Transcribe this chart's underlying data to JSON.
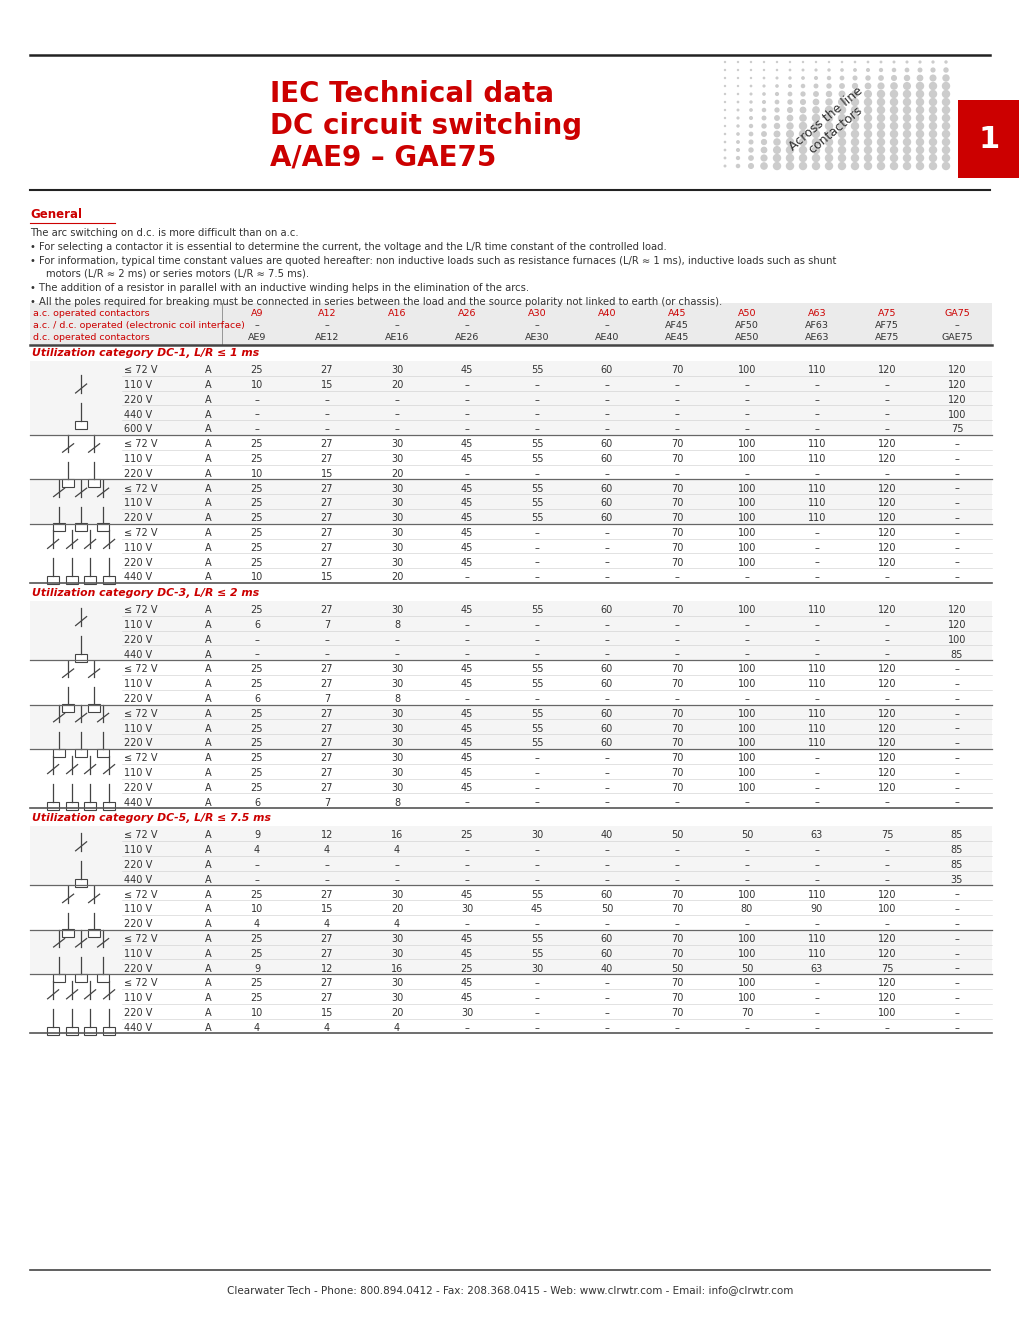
{
  "title_line1": "IEC Technical data",
  "title_line2": "DC circuit switching",
  "title_line3": "A/AE9 – GAE75",
  "title_color": "#cc0000",
  "page_number": "1",
  "general_heading": "General",
  "general_text_line1": "The arc switching on d.c. is more difficult than on a.c.",
  "general_text_bullets": [
    "For selecting a contactor it is essential to determine the current, the voltage and the L/R time constant of the controlled load.",
    "For information, typical time constant values are quoted hereafter: non inductive loads such as resistance furnaces (L/R ≈ 1 ms), inductive loads such as shunt\n  motors (L/R ≈ 2 ms) or series motors (L/R ≈ 7.5 ms).",
    "The addition of a resistor in parallel with an inductive winding helps in the elimination of the arcs.",
    "All the poles required for breaking must be connected in series between the load and the source polarity not linked to earth (or chassis)."
  ],
  "col_headers_row1": [
    "A9",
    "A12",
    "A16",
    "A26",
    "A30",
    "A40",
    "A45",
    "A50",
    "A63",
    "A75",
    "GA75"
  ],
  "col_headers_row2": [
    "–",
    "–",
    "–",
    "–",
    "–",
    "–",
    "AF45",
    "AF50",
    "AF63",
    "AF75",
    "–"
  ],
  "col_headers_row3": [
    "AE9",
    "AE12",
    "AE16",
    "AE26",
    "AE30",
    "AE40",
    "AE45",
    "AE50",
    "AE63",
    "AE75",
    "GAE75"
  ],
  "row_label_ac": "a.c. operated contactors",
  "row_label_acdc": "a.c. / d.c. operated (electronic coil interface)",
  "row_label_dc": "d.c. operated contactors",
  "section1_title": "Utilization category DC-1, L/R ≤ 1 ms",
  "section2_title": "Utilization category DC-3, L/R ≤ 2 ms",
  "section3_title": "Utilization category DC-5, L/R ≤ 7.5 ms",
  "footer": "Clearwater Tech - Phone: 800.894.0412 - Fax: 208.368.0415 - Web: www.clrwtr.com - Email: info@clrwtr.com",
  "bg_color": "#ffffff",
  "red_color": "#cc0000",
  "table_data": {
    "DC1": [
      [
        0,
        "≤ 72 V",
        "A",
        "25",
        "27",
        "30",
        "45",
        "55",
        "60",
        "70",
        "100",
        "110",
        "120",
        "120"
      ],
      [
        0,
        "110 V",
        "A",
        "10",
        "15",
        "20",
        "–",
        "–",
        "–",
        "–",
        "–",
        "–",
        "–",
        "120"
      ],
      [
        0,
        "220 V",
        "A",
        "–",
        "–",
        "–",
        "–",
        "–",
        "–",
        "–",
        "–",
        "–",
        "–",
        "120"
      ],
      [
        0,
        "440 V",
        "A",
        "–",
        "–",
        "–",
        "–",
        "–",
        "–",
        "–",
        "–",
        "–",
        "–",
        "100"
      ],
      [
        0,
        "600 V",
        "A",
        "–",
        "–",
        "–",
        "–",
        "–",
        "–",
        "–",
        "–",
        "–",
        "–",
        "75"
      ],
      [
        1,
        "≤ 72 V",
        "A",
        "25",
        "27",
        "30",
        "45",
        "55",
        "60",
        "70",
        "100",
        "110",
        "120",
        "–"
      ],
      [
        1,
        "110 V",
        "A",
        "25",
        "27",
        "30",
        "45",
        "55",
        "60",
        "70",
        "100",
        "110",
        "120",
        "–"
      ],
      [
        1,
        "220 V",
        "A",
        "10",
        "15",
        "20",
        "–",
        "–",
        "–",
        "–",
        "–",
        "–",
        "–",
        "–"
      ],
      [
        2,
        "≤ 72 V",
        "A",
        "25",
        "27",
        "30",
        "45",
        "55",
        "60",
        "70",
        "100",
        "110",
        "120",
        "–"
      ],
      [
        2,
        "110 V",
        "A",
        "25",
        "27",
        "30",
        "45",
        "55",
        "60",
        "70",
        "100",
        "110",
        "120",
        "–"
      ],
      [
        2,
        "220 V",
        "A",
        "25",
        "27",
        "30",
        "45",
        "55",
        "60",
        "70",
        "100",
        "110",
        "120",
        "–"
      ],
      [
        3,
        "≤ 72 V",
        "A",
        "25",
        "27",
        "30",
        "45",
        "–",
        "–",
        "70",
        "100",
        "–",
        "120",
        "–"
      ],
      [
        3,
        "110 V",
        "A",
        "25",
        "27",
        "30",
        "45",
        "–",
        "–",
        "70",
        "100",
        "–",
        "120",
        "–"
      ],
      [
        3,
        "220 V",
        "A",
        "25",
        "27",
        "30",
        "45",
        "–",
        "–",
        "70",
        "100",
        "–",
        "120",
        "–"
      ],
      [
        3,
        "440 V",
        "A",
        "10",
        "15",
        "20",
        "–",
        "–",
        "–",
        "–",
        "–",
        "–",
        "–",
        "–"
      ]
    ],
    "DC3": [
      [
        0,
        "≤ 72 V",
        "A",
        "25",
        "27",
        "30",
        "45",
        "55",
        "60",
        "70",
        "100",
        "110",
        "120",
        "120"
      ],
      [
        0,
        "110 V",
        "A",
        "6",
        "7",
        "8",
        "–",
        "–",
        "–",
        "–",
        "–",
        "–",
        "–",
        "120"
      ],
      [
        0,
        "220 V",
        "A",
        "–",
        "–",
        "–",
        "–",
        "–",
        "–",
        "–",
        "–",
        "–",
        "–",
        "100"
      ],
      [
        0,
        "440 V",
        "A",
        "–",
        "–",
        "–",
        "–",
        "–",
        "–",
        "–",
        "–",
        "–",
        "–",
        "85"
      ],
      [
        1,
        "≤ 72 V",
        "A",
        "25",
        "27",
        "30",
        "45",
        "55",
        "60",
        "70",
        "100",
        "110",
        "120",
        "–"
      ],
      [
        1,
        "110 V",
        "A",
        "25",
        "27",
        "30",
        "45",
        "55",
        "60",
        "70",
        "100",
        "110",
        "120",
        "–"
      ],
      [
        1,
        "220 V",
        "A",
        "6",
        "7",
        "8",
        "–",
        "–",
        "–",
        "–",
        "–",
        "–",
        "–",
        "–"
      ],
      [
        2,
        "≤ 72 V",
        "A",
        "25",
        "27",
        "30",
        "45",
        "55",
        "60",
        "70",
        "100",
        "110",
        "120",
        "–"
      ],
      [
        2,
        "110 V",
        "A",
        "25",
        "27",
        "30",
        "45",
        "55",
        "60",
        "70",
        "100",
        "110",
        "120",
        "–"
      ],
      [
        2,
        "220 V",
        "A",
        "25",
        "27",
        "30",
        "45",
        "55",
        "60",
        "70",
        "100",
        "110",
        "120",
        "–"
      ],
      [
        3,
        "≤ 72 V",
        "A",
        "25",
        "27",
        "30",
        "45",
        "–",
        "–",
        "70",
        "100",
        "–",
        "120",
        "–"
      ],
      [
        3,
        "110 V",
        "A",
        "25",
        "27",
        "30",
        "45",
        "–",
        "–",
        "70",
        "100",
        "–",
        "120",
        "–"
      ],
      [
        3,
        "220 V",
        "A",
        "25",
        "27",
        "30",
        "45",
        "–",
        "–",
        "70",
        "100",
        "–",
        "120",
        "–"
      ],
      [
        3,
        "440 V",
        "A",
        "6",
        "7",
        "8",
        "–",
        "–",
        "–",
        "–",
        "–",
        "–",
        "–",
        "–"
      ]
    ],
    "DC5": [
      [
        0,
        "≤ 72 V",
        "A",
        "9",
        "12",
        "16",
        "25",
        "30",
        "40",
        "50",
        "50",
        "63",
        "75",
        "85"
      ],
      [
        0,
        "110 V",
        "A",
        "4",
        "4",
        "4",
        "–",
        "–",
        "–",
        "–",
        "–",
        "–",
        "–",
        "85"
      ],
      [
        0,
        "220 V",
        "A",
        "–",
        "–",
        "–",
        "–",
        "–",
        "–",
        "–",
        "–",
        "–",
        "–",
        "85"
      ],
      [
        0,
        "440 V",
        "A",
        "–",
        "–",
        "–",
        "–",
        "–",
        "–",
        "–",
        "–",
        "–",
        "–",
        "35"
      ],
      [
        1,
        "≤ 72 V",
        "A",
        "25",
        "27",
        "30",
        "45",
        "55",
        "60",
        "70",
        "100",
        "110",
        "120",
        "–"
      ],
      [
        1,
        "110 V",
        "A",
        "10",
        "15",
        "20",
        "30",
        "45",
        "50",
        "70",
        "80",
        "90",
        "100",
        "–"
      ],
      [
        1,
        "220 V",
        "A",
        "4",
        "4",
        "4",
        "–",
        "–",
        "–",
        "–",
        "–",
        "–",
        "–",
        "–"
      ],
      [
        2,
        "≤ 72 V",
        "A",
        "25",
        "27",
        "30",
        "45",
        "55",
        "60",
        "70",
        "100",
        "110",
        "120",
        "–"
      ],
      [
        2,
        "110 V",
        "A",
        "25",
        "27",
        "30",
        "45",
        "55",
        "60",
        "70",
        "100",
        "110",
        "120",
        "–"
      ],
      [
        2,
        "220 V",
        "A",
        "9",
        "12",
        "16",
        "25",
        "30",
        "40",
        "50",
        "50",
        "63",
        "75",
        "–"
      ],
      [
        3,
        "≤ 72 V",
        "A",
        "25",
        "27",
        "30",
        "45",
        "–",
        "–",
        "70",
        "100",
        "–",
        "120",
        "–"
      ],
      [
        3,
        "110 V",
        "A",
        "25",
        "27",
        "30",
        "45",
        "–",
        "–",
        "70",
        "100",
        "–",
        "120",
        "–"
      ],
      [
        3,
        "220 V",
        "A",
        "10",
        "15",
        "20",
        "30",
        "–",
        "–",
        "70",
        "70",
        "–",
        "100",
        "–"
      ],
      [
        3,
        "440 V",
        "A",
        "4",
        "4",
        "4",
        "–",
        "–",
        "–",
        "–",
        "–",
        "–",
        "–",
        "–"
      ]
    ]
  },
  "dc1_group_sizes": [
    5,
    3,
    3,
    4
  ],
  "dc3_group_sizes": [
    4,
    3,
    3,
    4
  ],
  "dc5_group_sizes": [
    4,
    3,
    3,
    4
  ]
}
